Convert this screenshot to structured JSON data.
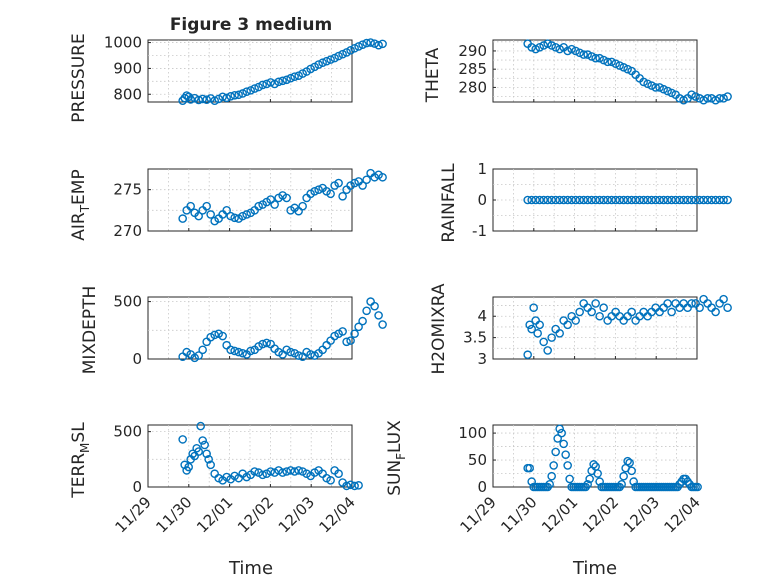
{
  "figure_title": "Figure 3 medium",
  "chart_data": [
    {
      "type": "scatter",
      "title": "Figure 3 medium",
      "ylabel": "PRESSURE",
      "xlabel": "",
      "ylim": [
        770,
        1010
      ],
      "yticks": [
        800,
        900,
        1000
      ],
      "ytick_labels": [
        "800",
        "900",
        "1000"
      ],
      "marker_color": "#0072bd",
      "series": [
        {
          "name": "PRESSURE",
          "t": [
            0,
            0.05,
            0.1,
            0.15,
            0.2,
            0.3,
            0.4,
            0.5,
            0.6,
            0.7,
            0.8,
            0.9,
            1.0,
            1.1,
            1.2,
            1.3,
            1.4,
            1.5,
            1.6,
            1.7,
            1.8,
            1.9,
            2.0,
            2.1,
            2.2,
            2.3,
            2.4,
            2.5,
            2.6,
            2.7,
            2.8,
            2.9,
            3.0,
            3.1,
            3.2,
            3.3,
            3.4,
            3.5,
            3.6,
            3.7,
            3.8,
            3.9,
            4.0,
            4.1,
            4.2,
            4.3,
            4.4,
            4.5,
            4.6,
            4.7,
            4.8,
            4.9,
            5.0
          ],
          "values": [
            775,
            785,
            795,
            790,
            780,
            785,
            778,
            782,
            779,
            784,
            775,
            782,
            790,
            786,
            792,
            796,
            798,
            803,
            810,
            815,
            822,
            828,
            836,
            840,
            846,
            840,
            848,
            852,
            856,
            862,
            868,
            872,
            880,
            888,
            898,
            906,
            915,
            922,
            928,
            934,
            940,
            948,
            955,
            962,
            970,
            978,
            985,
            992,
            998,
            1000,
            996,
            990,
            995
          ]
        }
      ]
    },
    {
      "type": "scatter",
      "title": "",
      "ylabel": "THETA",
      "xlabel": "",
      "ylim": [
        276,
        293
      ],
      "yticks": [
        280,
        285,
        290
      ],
      "ytick_labels": [
        "280",
        "285",
        "290"
      ],
      "marker_color": "#0072bd",
      "series": [
        {
          "name": "THETA",
          "t": [
            0,
            0.1,
            0.2,
            0.3,
            0.4,
            0.5,
            0.6,
            0.7,
            0.8,
            0.9,
            1.0,
            1.1,
            1.2,
            1.3,
            1.4,
            1.5,
            1.6,
            1.7,
            1.8,
            1.9,
            2.0,
            2.1,
            2.2,
            2.3,
            2.4,
            2.5,
            2.6,
            2.7,
            2.8,
            2.9,
            3.0,
            3.1,
            3.2,
            3.3,
            3.4,
            3.5,
            3.6,
            3.7,
            3.8,
            3.9,
            4.0,
            4.1,
            4.2,
            4.3,
            4.4,
            4.5,
            4.6,
            4.7,
            4.8,
            4.9,
            5.0
          ],
          "values": [
            292,
            291,
            290.5,
            291,
            291.5,
            292,
            291.5,
            291,
            290.5,
            291,
            290,
            290.5,
            290,
            289.5,
            289,
            289,
            288.5,
            288,
            288,
            287.5,
            287,
            287,
            286.5,
            286,
            285.5,
            285,
            284.5,
            283.5,
            282.5,
            281.5,
            281,
            280.5,
            280,
            280,
            279.5,
            279,
            278.5,
            278,
            277,
            276.5,
            277,
            278,
            277.5,
            277,
            276.5,
            277,
            277,
            276.5,
            277,
            277,
            277.5
          ]
        }
      ]
    },
    {
      "type": "scatter",
      "title": "",
      "ylabel": "AIR",
      "ylabel_sub": "T",
      "ylabel_rest": "EMP",
      "xlabel": "",
      "ylim": [
        270,
        277.5
      ],
      "yticks": [
        270,
        275
      ],
      "ytick_labels": [
        "270",
        "275"
      ],
      "marker_color": "#0072bd",
      "series": [
        {
          "name": "AIR_TEMP",
          "t": [
            0,
            0.1,
            0.2,
            0.3,
            0.4,
            0.5,
            0.6,
            0.7,
            0.8,
            0.9,
            1.0,
            1.1,
            1.2,
            1.3,
            1.4,
            1.5,
            1.6,
            1.7,
            1.8,
            1.9,
            2.0,
            2.1,
            2.2,
            2.3,
            2.4,
            2.5,
            2.6,
            2.7,
            2.8,
            2.9,
            3.0,
            3.1,
            3.2,
            3.3,
            3.4,
            3.5,
            3.6,
            3.7,
            3.8,
            3.9,
            4.0,
            4.1,
            4.2,
            4.3,
            4.4,
            4.5,
            4.6,
            4.7,
            4.8,
            4.9,
            5.0
          ],
          "values": [
            271.5,
            272.5,
            273,
            272.2,
            271.8,
            272.5,
            273,
            272,
            271.2,
            271.5,
            272,
            272.5,
            271.8,
            271.6,
            271.5,
            271.8,
            272,
            272.2,
            272.5,
            273,
            273.2,
            273.5,
            273.8,
            273.2,
            274,
            274.3,
            274,
            272.5,
            272.8,
            272.4,
            273,
            274,
            274.5,
            274.8,
            275,
            275.2,
            274.8,
            274.5,
            275.5,
            275.8,
            274.2,
            275,
            275.5,
            275.8,
            276,
            275.5,
            276.2,
            277,
            276.5,
            276.8,
            276.5
          ]
        }
      ]
    },
    {
      "type": "scatter",
      "title": "",
      "ylabel": "RAINFALL",
      "xlabel": "",
      "ylim": [
        -1,
        1
      ],
      "yticks": [
        -1,
        0,
        1
      ],
      "ytick_labels": [
        "-1",
        "0",
        "1"
      ],
      "marker_color": "#0072bd",
      "series": [
        {
          "name": "RAINFALL",
          "t": [
            0,
            0.1,
            0.2,
            0.3,
            0.4,
            0.5,
            0.6,
            0.7,
            0.8,
            0.9,
            1.0,
            1.1,
            1.2,
            1.3,
            1.4,
            1.5,
            1.6,
            1.7,
            1.8,
            1.9,
            2.0,
            2.1,
            2.2,
            2.3,
            2.4,
            2.5,
            2.6,
            2.7,
            2.8,
            2.9,
            3.0,
            3.1,
            3.2,
            3.3,
            3.4,
            3.5,
            3.6,
            3.7,
            3.8,
            3.9,
            4.0,
            4.1,
            4.2,
            4.3,
            4.4,
            4.5,
            4.6,
            4.7,
            4.8,
            4.9,
            5.0
          ],
          "values": [
            0,
            0,
            0,
            0,
            0,
            0,
            0,
            0,
            0,
            0,
            0,
            0,
            0,
            0,
            0,
            0,
            0,
            0,
            0,
            0,
            0,
            0,
            0,
            0,
            0,
            0,
            0,
            0,
            0,
            0,
            0,
            0,
            0,
            0,
            0,
            0,
            0,
            0,
            0,
            0,
            0,
            0,
            0,
            0,
            0,
            0,
            0,
            0,
            0,
            0,
            0
          ]
        }
      ]
    },
    {
      "type": "scatter",
      "title": "",
      "ylabel": "MIXDEPTH",
      "xlabel": "",
      "ylim": [
        0,
        540
      ],
      "yticks": [
        0,
        500
      ],
      "ytick_labels": [
        "0",
        "500"
      ],
      "marker_color": "#0072bd",
      "series": [
        {
          "name": "MIXDEPTH",
          "t": [
            0,
            0.1,
            0.2,
            0.3,
            0.4,
            0.5,
            0.6,
            0.7,
            0.8,
            0.9,
            1.0,
            1.1,
            1.2,
            1.3,
            1.4,
            1.5,
            1.6,
            1.7,
            1.8,
            1.9,
            2.0,
            2.1,
            2.2,
            2.3,
            2.4,
            2.5,
            2.6,
            2.7,
            2.8,
            2.9,
            3.0,
            3.1,
            3.2,
            3.3,
            3.4,
            3.5,
            3.6,
            3.7,
            3.8,
            3.9,
            4.0,
            4.1,
            4.2,
            4.3,
            4.4,
            4.5,
            4.6,
            4.7,
            4.8,
            4.9,
            5.0
          ],
          "values": [
            20,
            60,
            40,
            10,
            30,
            80,
            150,
            190,
            210,
            220,
            200,
            120,
            80,
            70,
            60,
            50,
            40,
            70,
            80,
            110,
            130,
            140,
            130,
            90,
            60,
            40,
            80,
            60,
            50,
            30,
            20,
            60,
            40,
            30,
            50,
            80,
            120,
            160,
            200,
            220,
            240,
            150,
            160,
            220,
            280,
            330,
            420,
            500,
            460,
            380,
            300
          ]
        }
      ]
    },
    {
      "type": "scatter",
      "title": "",
      "ylabel": "H2OMIXRA",
      "xlabel": "",
      "ylim": [
        3,
        4.45
      ],
      "yticks": [
        3,
        3.5,
        4
      ],
      "ytick_labels": [
        "3",
        "3.5",
        "4"
      ],
      "marker_color": "#0072bd",
      "series": [
        {
          "name": "H2OMIXRA",
          "t": [
            0,
            0.05,
            0.1,
            0.15,
            0.2,
            0.25,
            0.3,
            0.4,
            0.5,
            0.6,
            0.7,
            0.8,
            0.9,
            1.0,
            1.1,
            1.2,
            1.3,
            1.4,
            1.5,
            1.6,
            1.7,
            1.8,
            1.9,
            2.0,
            2.1,
            2.2,
            2.3,
            2.4,
            2.5,
            2.6,
            2.7,
            2.8,
            2.9,
            3.0,
            3.1,
            3.2,
            3.3,
            3.4,
            3.5,
            3.6,
            3.7,
            3.8,
            3.9,
            4.0,
            4.1,
            4.2,
            4.3,
            4.4,
            4.5,
            4.6,
            4.7,
            4.8,
            4.9,
            5.0
          ],
          "values": [
            3.1,
            3.8,
            3.7,
            4.2,
            3.9,
            3.6,
            3.8,
            3.4,
            3.2,
            3.5,
            3.7,
            3.6,
            3.9,
            3.8,
            4.0,
            3.9,
            4.1,
            4.3,
            4.2,
            4.1,
            4.3,
            4.0,
            4.2,
            3.9,
            4.0,
            4.1,
            4.0,
            3.9,
            4.0,
            4.1,
            3.9,
            4.0,
            4.1,
            4.0,
            4.1,
            4.2,
            4.1,
            4.2,
            4.3,
            4.1,
            4.3,
            4.2,
            4.3,
            4.2,
            4.3,
            4.3,
            4.2,
            4.4,
            4.3,
            4.2,
            4.1,
            4.3,
            4.4,
            4.2
          ]
        }
      ]
    },
    {
      "type": "scatter",
      "title": "",
      "ylabel": "TERR",
      "ylabel_sub": "M",
      "ylabel_rest": "SL",
      "xlabel": "Time",
      "ylim": [
        0,
        560
      ],
      "yticks": [
        0,
        500
      ],
      "ytick_labels": [
        "0",
        "500"
      ],
      "xticks": [
        -1,
        0,
        1,
        2,
        3,
        4
      ],
      "xtick_labels": [
        "11/29",
        "11/30",
        "12/01",
        "12/02",
        "12/03",
        "12/04"
      ],
      "marker_color": "#0072bd",
      "series": [
        {
          "name": "TERR_MSL",
          "t": [
            0,
            0.05,
            0.1,
            0.15,
            0.2,
            0.25,
            0.3,
            0.35,
            0.4,
            0.45,
            0.5,
            0.55,
            0.6,
            0.65,
            0.7,
            0.8,
            0.9,
            1.0,
            1.1,
            1.2,
            1.3,
            1.4,
            1.5,
            1.6,
            1.7,
            1.8,
            1.9,
            2.0,
            2.1,
            2.2,
            2.3,
            2.4,
            2.5,
            2.6,
            2.7,
            2.8,
            2.9,
            3.0,
            3.1,
            3.2,
            3.3,
            3.4,
            3.5,
            3.6,
            3.7,
            3.8,
            3.9,
            4.0,
            4.1,
            4.2,
            4.3,
            4.4
          ],
          "values": [
            430,
            200,
            150,
            180,
            250,
            300,
            280,
            350,
            320,
            550,
            420,
            380,
            300,
            250,
            200,
            120,
            80,
            60,
            90,
            70,
            100,
            80,
            120,
            90,
            110,
            140,
            130,
            110,
            120,
            140,
            130,
            150,
            130,
            140,
            150,
            140,
            150,
            140,
            120,
            100,
            130,
            150,
            120,
            80,
            60,
            150,
            120,
            40,
            10,
            20,
            10,
            15
          ]
        }
      ]
    },
    {
      "type": "scatter",
      "title": "",
      "ylabel": "SUN",
      "ylabel_sub": "F",
      "ylabel_rest": "LUX",
      "xlabel": "Time",
      "ylim": [
        0,
        115
      ],
      "yticks": [
        0,
        50,
        100
      ],
      "ytick_labels": [
        "0",
        "50",
        "100"
      ],
      "xticks": [
        -1,
        0,
        1,
        2,
        3,
        4
      ],
      "xtick_labels": [
        "11/29",
        "11/30",
        "12/01",
        "12/02",
        "12/03",
        "12/04"
      ],
      "marker_color": "#0072bd",
      "series": [
        {
          "name": "SUN_FLUX",
          "t": [
            0,
            0.05,
            0.1,
            0.15,
            0.2,
            0.25,
            0.3,
            0.35,
            0.4,
            0.45,
            0.5,
            0.55,
            0.6,
            0.65,
            0.7,
            0.75,
            0.8,
            0.85,
            0.9,
            0.95,
            1.0,
            1.05,
            1.1,
            1.15,
            1.2,
            1.25,
            1.3,
            1.35,
            1.4,
            1.45,
            1.5,
            1.55,
            1.6,
            1.65,
            1.7,
            1.75,
            1.8,
            1.85,
            1.9,
            1.95,
            2.0,
            2.05,
            2.1,
            2.15,
            2.2,
            2.25,
            2.3,
            2.35,
            2.4,
            2.45,
            2.5,
            2.55,
            2.6,
            2.65,
            2.7,
            2.75,
            2.8,
            2.85,
            2.9,
            2.95,
            3.0,
            3.05,
            3.1,
            3.15,
            3.2,
            3.25,
            3.3,
            3.35,
            3.4,
            3.45,
            3.5,
            3.55,
            3.6,
            3.65,
            3.7,
            3.75,
            3.8,
            3.85,
            3.9,
            3.95,
            4.0,
            4.05,
            4.1,
            4.15,
            4.2,
            4.25
          ],
          "values": [
            35,
            35,
            10,
            0,
            0,
            0,
            0,
            0,
            0,
            0,
            0,
            5,
            20,
            40,
            65,
            90,
            108,
            100,
            80,
            60,
            40,
            15,
            0,
            0,
            0,
            0,
            0,
            0,
            0,
            0,
            5,
            15,
            30,
            42,
            38,
            25,
            10,
            0,
            0,
            0,
            0,
            0,
            0,
            0,
            0,
            0,
            0,
            5,
            20,
            35,
            48,
            45,
            30,
            10,
            0,
            0,
            0,
            0,
            0,
            0,
            0,
            0,
            0,
            0,
            0,
            0,
            0,
            0,
            0,
            0,
            0,
            0,
            0,
            0,
            0,
            0,
            5,
            10,
            15,
            15,
            10,
            5,
            0,
            0,
            0,
            0
          ]
        }
      ]
    }
  ]
}
